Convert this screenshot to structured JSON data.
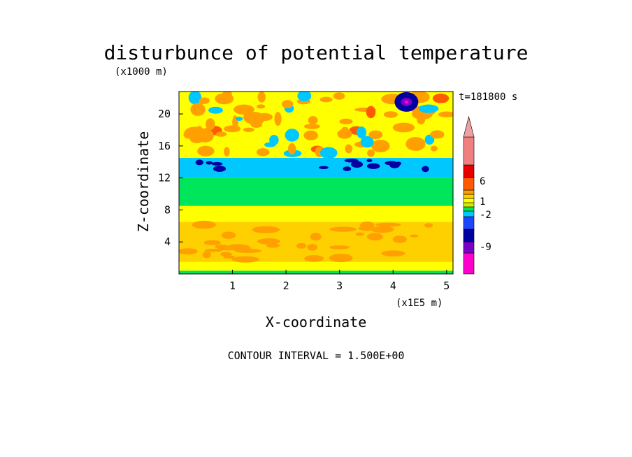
{
  "chart_data": {
    "type": "heatmap",
    "title": "disturbunce of potential temperature",
    "z_scale_label": "(x1000 m)",
    "x_scale_label": "(x1E5 m)",
    "xlabel": "X-coordinate",
    "ylabel": "Z-coordinate",
    "time_label": "t=181800 s",
    "footer": "CONTOUR INTERVAL = 1.500E+00",
    "xlim": [
      0,
      5.12
    ],
    "ylim": [
      0,
      22.8
    ],
    "x_ticks": [
      1,
      2,
      3,
      4,
      5
    ],
    "y_ticks": [
      4,
      8,
      12,
      16,
      20
    ],
    "colorbar": {
      "colors": [
        "#ff00cc",
        "#7a00c8",
        "#0000a0",
        "#1e46ff",
        "#00c8ff",
        "#00e65a",
        "#c8f000",
        "#ffff00",
        "#ffd000",
        "#ffa000",
        "#ff5a00",
        "#e60000",
        "#f08080",
        "#f0a0a0"
      ],
      "labels": [
        "-9",
        "-2",
        "1",
        "6"
      ]
    },
    "bands": [
      {
        "z_min": 0.0,
        "z_max": 0.4,
        "level": "green",
        "color": "#00e65a"
      },
      {
        "z_min": 0.4,
        "z_max": 1.5,
        "level": "yellow",
        "color": "#ffff00"
      },
      {
        "z_min": 1.5,
        "z_max": 6.5,
        "level": "orange",
        "color": "#ffd000"
      },
      {
        "z_min": 6.5,
        "z_max": 8.5,
        "level": "yellow",
        "color": "#ffff00"
      },
      {
        "z_min": 8.5,
        "z_max": 12.0,
        "level": "green",
        "color": "#00e65a"
      },
      {
        "z_min": 12.0,
        "z_max": 14.5,
        "level": "cyan",
        "color": "#00c8ff"
      },
      {
        "z_min": 14.5,
        "z_max": 22.8,
        "level": "yellow-orange",
        "color": "#ffff00"
      }
    ],
    "minimum": {
      "x": 4.25,
      "z": 21.5,
      "value_level": "magenta"
    }
  }
}
